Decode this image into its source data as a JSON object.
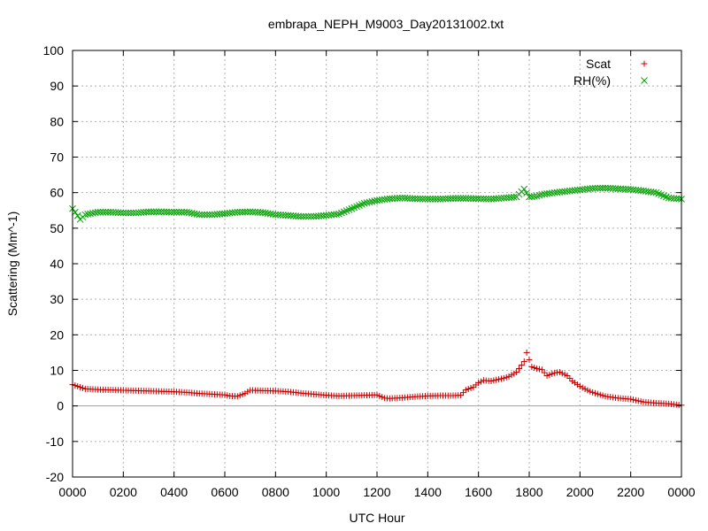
{
  "chart_data": {
    "type": "scatter",
    "title": "embrapa_NEPH_M9003_Day20131002.txt",
    "xlabel": "UTC Hour",
    "ylabel": "Scattering (Mm^-1)",
    "xlim": [
      0,
      24
    ],
    "ylim": [
      -20,
      100
    ],
    "grid": true,
    "legend_position": "top-right",
    "x_tick_labels": [
      "0000",
      "0200",
      "0400",
      "0600",
      "0800",
      "1000",
      "1200",
      "1400",
      "1600",
      "1800",
      "2000",
      "2200",
      "0000"
    ],
    "y_ticks": [
      -20,
      -10,
      0,
      10,
      20,
      30,
      40,
      50,
      60,
      70,
      80,
      90,
      100
    ],
    "series": [
      {
        "name": "Scat",
        "marker": "plus",
        "color": "#cc0000",
        "x": [
          0,
          0.5,
          1,
          1.5,
          2,
          2.5,
          3,
          3.5,
          4,
          4.5,
          5,
          5.5,
          6,
          6.2,
          6.5,
          6.8,
          7,
          7.5,
          8,
          8.5,
          9,
          9.5,
          10,
          10.5,
          11,
          11.5,
          12,
          12.3,
          12.5,
          13,
          13.5,
          14,
          14.5,
          15,
          15.3,
          15.5,
          15.8,
          16,
          16.2,
          16.5,
          17,
          17.2,
          17.5,
          17.7,
          17.8,
          17.9,
          18.1,
          18.3,
          18.5,
          18.7,
          19,
          19.2,
          19.5,
          19.7,
          20,
          20.3,
          20.5,
          21,
          21.5,
          22,
          22.5,
          23,
          23.5,
          24
        ],
        "y": [
          6,
          4.8,
          4.6,
          4.5,
          4.4,
          4.3,
          4.2,
          4.1,
          4,
          3.8,
          3.5,
          3.3,
          3.1,
          2.8,
          2.7,
          3.5,
          4.4,
          4.3,
          4.2,
          4,
          3.6,
          3.3,
          3,
          2.8,
          2.9,
          3,
          3.1,
          2.2,
          2.1,
          2.3,
          2.6,
          2.8,
          2.9,
          2.9,
          3,
          4.5,
          5.3,
          6.5,
          7.2,
          7,
          7.8,
          8.3,
          9.5,
          11.5,
          12.5,
          15,
          11,
          10.5,
          10.2,
          8.5,
          9.3,
          9.5,
          8.5,
          7,
          5.5,
          4.4,
          3.8,
          2.7,
          2.2,
          1.9,
          1.1,
          0.8,
          0.6,
          0.2
        ]
      },
      {
        "name": "RH(%)",
        "marker": "cross",
        "color": "#00a000",
        "x": [
          0,
          0.3,
          0.5,
          1,
          1.5,
          2,
          2.5,
          3,
          3.5,
          4,
          4.5,
          5,
          5.5,
          6,
          6.5,
          7,
          7.5,
          8,
          8.5,
          9,
          9.5,
          10,
          10.5,
          11,
          11.5,
          12,
          12.5,
          13,
          13.5,
          14,
          14.5,
          15,
          15.5,
          16,
          16.5,
          17,
          17.5,
          17.8,
          18,
          18.3,
          18.5,
          19,
          19.5,
          20,
          20.5,
          21,
          21.5,
          22,
          22.5,
          23,
          23.5,
          24
        ],
        "y": [
          55.5,
          52.5,
          53.8,
          54.5,
          54.5,
          54.3,
          54.3,
          54.6,
          54.6,
          54.5,
          54.5,
          53.8,
          53.8,
          54.1,
          54.5,
          54.6,
          54.4,
          53.8,
          53.6,
          53.3,
          53.3,
          53.6,
          54,
          55.5,
          57,
          57.8,
          58.3,
          58.5,
          58.3,
          58.2,
          58.2,
          58.4,
          58.4,
          58.3,
          58.2,
          58.5,
          58.8,
          61,
          58.8,
          59,
          59.5,
          60,
          60.4,
          60.8,
          61.2,
          61.3,
          61.1,
          60.9,
          60.5,
          60,
          58.5,
          58.2
        ]
      }
    ]
  }
}
